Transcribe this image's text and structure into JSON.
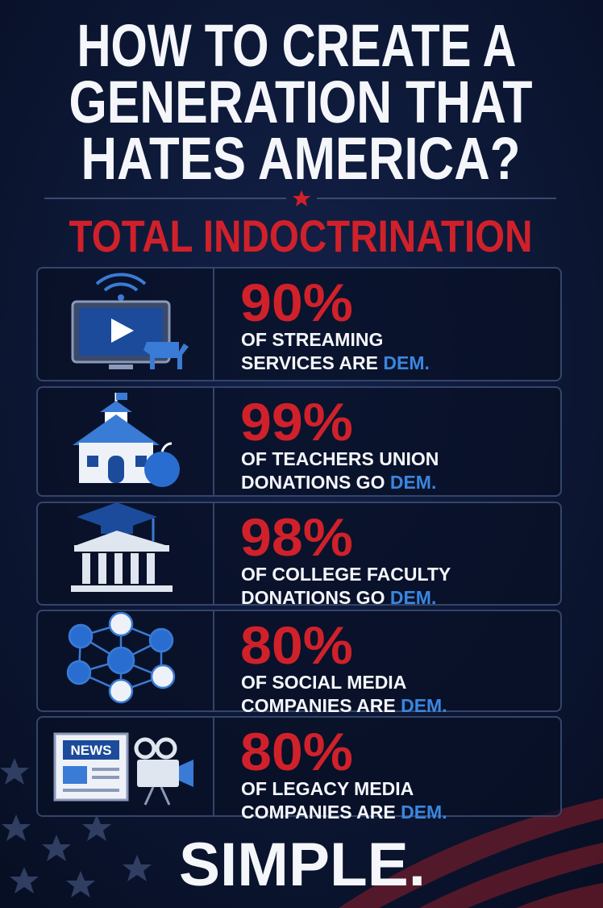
{
  "title_lines": [
    "HOW TO CREATE A",
    "GENERATION THAT",
    "HATES AMERICA?"
  ],
  "subtitle": "TOTAL INDOCTRINATION",
  "rows": [
    {
      "stat": "90%",
      "line1": "OF STREAMING",
      "line2": "SERVICES ARE",
      "highlight": "DEM."
    },
    {
      "stat": "99%",
      "line1": "OF TEACHERS UNION",
      "line2": "DONATIONS GO",
      "highlight": "DEM."
    },
    {
      "stat": "98%",
      "line1": "OF COLLEGE FACULTY",
      "line2": "DONATIONS GO",
      "highlight": "DEM."
    },
    {
      "stat": "80%",
      "line1": "OF SOCIAL MEDIA",
      "line2": "COMPANIES ARE",
      "highlight": "DEM."
    },
    {
      "stat": "80%",
      "line1": "OF LEGACY MEDIA",
      "line2": "COMPANIES ARE",
      "highlight": "DEM.",
      "icon_text": "NEWS"
    }
  ],
  "footer": "SIMPLE."
}
